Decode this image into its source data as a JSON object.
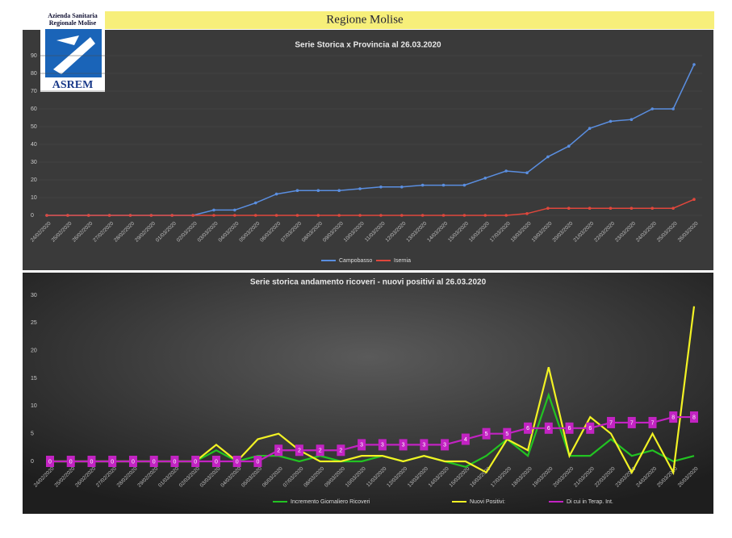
{
  "header": {
    "title": "Regione Molise"
  },
  "logo": {
    "line1": "Azienda Sanitaria",
    "line2": "Regionale Molise",
    "name": "ASREM"
  },
  "chart_data": [
    {
      "type": "line",
      "title": "Serie Storica x Provincia al 26.03.2020",
      "categories": [
        "24/02/2020",
        "25/02/2020",
        "26/02/2020",
        "27/02/2020",
        "28/02/2020",
        "29/02/2020",
        "01/03/2020",
        "02/03/2020",
        "03/03/2020",
        "04/03/2020",
        "05/03/2020",
        "06/03/2020",
        "07/03/2020",
        "08/03/2020",
        "09/03/2020",
        "10/03/2020",
        "11/03/2020",
        "12/03/2020",
        "13/03/2020",
        "14/03/2020",
        "15/03/2020",
        "16/03/2020",
        "17/03/2020",
        "18/03/2020",
        "19/03/2020",
        "20/03/2020",
        "21/03/2020",
        "22/03/2020",
        "23/03/2020",
        "24/03/2020",
        "25/03/2020",
        "26/03/2020"
      ],
      "series": [
        {
          "name": "Campobasso",
          "color": "#5a8ee0",
          "values": [
            0,
            0,
            0,
            0,
            0,
            0,
            0,
            0,
            3,
            3,
            7,
            12,
            14,
            14,
            14,
            15,
            16,
            16,
            17,
            17,
            17,
            21,
            25,
            24,
            33,
            39,
            49,
            53,
            54,
            60,
            60,
            85
          ]
        },
        {
          "name": "Isernia",
          "color": "#e0473c",
          "values": [
            0,
            0,
            0,
            0,
            0,
            0,
            0,
            0,
            0,
            0,
            0,
            0,
            0,
            0,
            0,
            0,
            0,
            0,
            0,
            0,
            0,
            0,
            0,
            1,
            4,
            4,
            4,
            4,
            4,
            4,
            4,
            9
          ]
        }
      ],
      "ylim": [
        0,
        90
      ],
      "yticks": [
        0,
        10,
        20,
        30,
        40,
        50,
        60,
        70,
        80,
        90
      ],
      "grid": true,
      "markers": true
    },
    {
      "type": "line",
      "title": "Serie storica andamento ricoveri - nuovi positivi al 26.03.2020",
      "categories": [
        "24/02/2020",
        "25/02/2020",
        "26/02/2020",
        "27/02/2020",
        "28/02/2020",
        "29/02/2020",
        "01/03/2020",
        "02/03/2020",
        "03/03/2020",
        "04/03/2020",
        "05/03/2020",
        "06/03/2020",
        "07/03/2020",
        "08/03/2020",
        "09/03/2020",
        "10/03/2020",
        "11/03/2020",
        "12/03/2020",
        "13/03/2020",
        "14/03/2020",
        "15/03/2020",
        "16/03/2020",
        "17/03/2020",
        "18/03/2020",
        "19/03/2020",
        "20/03/2020",
        "21/03/2020",
        "22/03/2020",
        "23/03/2020",
        "24/03/2020",
        "25/03/2020",
        "26/03/2020"
      ],
      "series": [
        {
          "name": "Incremento Giornaliero Ricoveri",
          "color": "#22c322",
          "values": [
            0,
            0,
            0,
            0,
            0,
            0,
            0,
            0,
            2,
            0,
            1,
            1,
            0,
            1,
            0,
            0,
            1,
            0,
            1,
            0,
            -1,
            1,
            4,
            1,
            12,
            1,
            1,
            4,
            1,
            2,
            0,
            1
          ]
        },
        {
          "name": "Nuovi Positivi:",
          "color": "#f2f224",
          "values": [
            0,
            0,
            0,
            0,
            0,
            0,
            0,
            0,
            3,
            0,
            4,
            5,
            2,
            0,
            0,
            1,
            1,
            0,
            1,
            0,
            0,
            -2,
            4,
            2,
            17,
            1,
            8,
            5,
            -2,
            5,
            -2,
            28
          ]
        },
        {
          "name": "Di cui in Terap. Int.",
          "color": "#c223c2",
          "values": [
            0,
            0,
            0,
            0,
            0,
            0,
            0,
            0,
            0,
            0,
            0,
            2,
            2,
            2,
            2,
            3,
            3,
            3,
            3,
            3,
            4,
            5,
            5,
            6,
            6,
            6,
            6,
            7,
            7,
            7,
            8,
            8
          ],
          "data_labels": true
        }
      ],
      "ylim": [
        -3,
        30
      ],
      "yticks": [
        0,
        5,
        10,
        15,
        20,
        25,
        30
      ],
      "grid": false,
      "markers": false
    }
  ]
}
